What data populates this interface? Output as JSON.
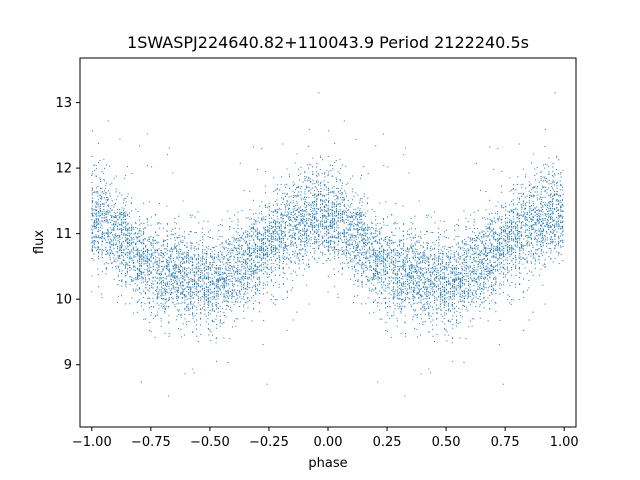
{
  "chart_data": {
    "type": "scatter",
    "title": "1SWASPJ224640.82+110043.9 Period 2122240.5s",
    "xlabel": "phase",
    "ylabel": "flux",
    "xlim": [
      -1.05,
      1.05
    ],
    "ylim": [
      8.05,
      13.68
    ],
    "x_ticks": [
      -1.0,
      -0.75,
      -0.5,
      -0.25,
      0.0,
      0.25,
      0.5,
      0.75,
      1.0
    ],
    "x_tick_labels": [
      "−1.00",
      "−0.75",
      "−0.50",
      "−0.25",
      "0.00",
      "0.25",
      "0.50",
      "0.75",
      "1.00"
    ],
    "y_ticks": [
      9,
      10,
      11,
      12,
      13
    ],
    "y_tick_labels": [
      "9",
      "10",
      "11",
      "12",
      "13"
    ],
    "grid": false,
    "marker_color": "#1f77b4",
    "trend": {
      "phase": [
        0.0,
        0.05,
        0.1,
        0.15,
        0.2,
        0.25,
        0.3,
        0.35,
        0.4,
        0.45,
        0.5,
        0.55,
        0.6,
        0.65,
        0.7,
        0.75,
        0.8,
        0.85,
        0.9,
        0.95,
        1.0
      ],
      "flux": [
        11.25,
        11.2,
        11.05,
        10.85,
        10.65,
        10.5,
        10.45,
        10.4,
        10.35,
        10.3,
        10.3,
        10.3,
        10.4,
        10.55,
        10.7,
        10.85,
        10.95,
        11.1,
        11.2,
        11.3,
        11.25
      ]
    },
    "scatter_sigma": 0.35
  }
}
